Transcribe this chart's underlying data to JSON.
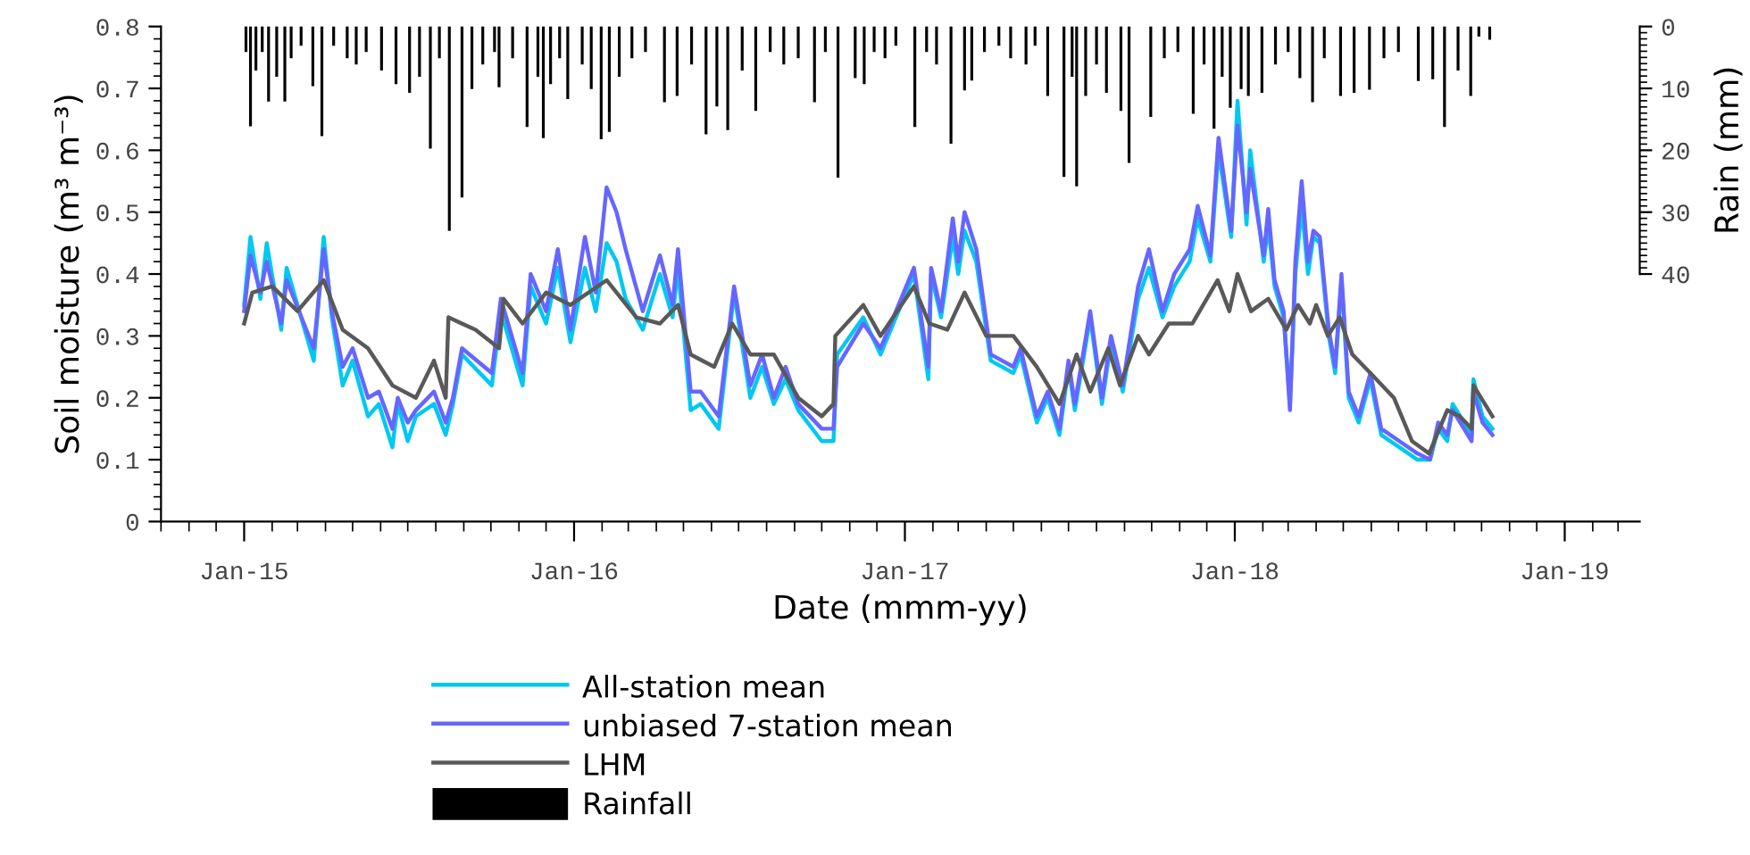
{
  "chart_data": {
    "type": "line",
    "xlabel": "Date (mmm-yy)",
    "ylabel": "Soil moisture (m³ m⁻³)",
    "y2label": "Rain (mm)",
    "xlim": [
      "2014-10-01",
      "2019-03-25"
    ],
    "xticks": [
      {
        "value": "2015-01-01",
        "label": "Jan-15"
      },
      {
        "value": "2016-01-01",
        "label": "Jan-16"
      },
      {
        "value": "2017-01-01",
        "label": "Jan-17"
      },
      {
        "value": "2018-01-01",
        "label": "Jan-18"
      },
      {
        "value": "2019-01-01",
        "label": "Jan-19"
      }
    ],
    "ylim": [
      0,
      0.8
    ],
    "yticks": [
      0,
      0.1,
      0.2,
      0.3,
      0.4,
      0.5,
      0.6,
      0.7,
      0.8
    ],
    "y2lim": [
      80,
      0
    ],
    "y2ticks": [
      0,
      10,
      20,
      30,
      40
    ],
    "grid": false,
    "legend": "bottom",
    "series": [
      {
        "name": "All-station mean",
        "color": "#00c8f0",
        "x": [
          "2015-01-01",
          "2015-01-08",
          "2015-01-19",
          "2015-01-26",
          "2015-02-11",
          "2015-02-17",
          "2015-03-19",
          "2015-03-30",
          "2015-04-08",
          "2015-04-20",
          "2015-05-01",
          "2015-05-18",
          "2015-05-30",
          "2015-06-14",
          "2015-06-20",
          "2015-07-01",
          "2015-07-10",
          "2015-07-30",
          "2015-08-12",
          "2015-08-20",
          "2015-08-30",
          "2015-10-02",
          "2015-10-12",
          "2015-11-05",
          "2015-11-14",
          "2015-12-01",
          "2015-12-14",
          "2015-12-28",
          "2016-01-13",
          "2016-01-25",
          "2016-02-06",
          "2016-02-17",
          "2016-02-27",
          "2016-03-17",
          "2016-04-05",
          "2016-04-19",
          "2016-04-25",
          "2016-05-09",
          "2016-05-20",
          "2016-06-09",
          "2016-06-26",
          "2016-07-14",
          "2016-07-27",
          "2016-08-09",
          "2016-08-22",
          "2016-09-05",
          "2016-10-01",
          "2016-10-14",
          "2016-10-18",
          "2016-11-16",
          "2016-12-05",
          "2017-01-11",
          "2017-01-27",
          "2017-01-30",
          "2017-02-10",
          "2017-02-23",
          "2017-03-01",
          "2017-03-08",
          "2017-03-21",
          "2017-04-06",
          "2017-05-01",
          "2017-05-09",
          "2017-05-27",
          "2017-06-08",
          "2017-06-21",
          "2017-07-01",
          "2017-07-08",
          "2017-07-25",
          "2017-08-07",
          "2017-08-17",
          "2017-08-30",
          "2017-09-16",
          "2017-09-28",
          "2017-10-13",
          "2017-10-26",
          "2017-11-12",
          "2017-11-21",
          "2017-12-05",
          "2017-12-14",
          "2017-12-28",
          "2018-01-04",
          "2018-01-14",
          "2018-01-18",
          "2018-02-02",
          "2018-02-07",
          "2018-02-14",
          "2018-02-24",
          "2018-03-03",
          "2018-03-09",
          "2018-03-16",
          "2018-03-23",
          "2018-03-29",
          "2018-04-05",
          "2018-04-15",
          "2018-04-22",
          "2018-04-29",
          "2018-05-07",
          "2018-05-18",
          "2018-05-31",
          "2018-06-12",
          "2018-07-02",
          "2018-07-22",
          "2018-08-05",
          "2018-08-14",
          "2018-08-24",
          "2018-08-30",
          "2018-09-20",
          "2018-09-22",
          "2018-10-02",
          "2018-10-13"
        ],
        "values": [
          0.35,
          0.46,
          0.36,
          0.45,
          0.31,
          0.41,
          0.26,
          0.46,
          0.33,
          0.22,
          0.26,
          0.17,
          0.19,
          0.12,
          0.19,
          0.13,
          0.17,
          0.19,
          0.14,
          0.19,
          0.27,
          0.22,
          0.34,
          0.22,
          0.38,
          0.32,
          0.41,
          0.29,
          0.41,
          0.34,
          0.45,
          0.42,
          0.36,
          0.31,
          0.4,
          0.33,
          0.41,
          0.18,
          0.19,
          0.15,
          0.37,
          0.2,
          0.25,
          0.19,
          0.23,
          0.18,
          0.13,
          0.13,
          0.27,
          0.33,
          0.27,
          0.4,
          0.23,
          0.4,
          0.33,
          0.46,
          0.4,
          0.47,
          0.42,
          0.26,
          0.24,
          0.27,
          0.16,
          0.2,
          0.14,
          0.25,
          0.18,
          0.33,
          0.19,
          0.29,
          0.21,
          0.36,
          0.41,
          0.33,
          0.38,
          0.42,
          0.49,
          0.42,
          0.6,
          0.46,
          0.68,
          0.48,
          0.6,
          0.42,
          0.48,
          0.38,
          0.33,
          0.19,
          0.4,
          0.51,
          0.4,
          0.46,
          0.45,
          0.3,
          0.24,
          0.39,
          0.2,
          0.16,
          0.23,
          0.14,
          0.12,
          0.1,
          0.1,
          0.15,
          0.13,
          0.19,
          0.14,
          0.23,
          0.17,
          0.15
        ]
      },
      {
        "name": "unbiased 7-station mean",
        "color": "#6666ff",
        "x": [
          "2015-01-01",
          "2015-01-08",
          "2015-01-19",
          "2015-01-26",
          "2015-02-11",
          "2015-02-17",
          "2015-03-19",
          "2015-03-30",
          "2015-04-08",
          "2015-04-20",
          "2015-05-01",
          "2015-05-18",
          "2015-05-30",
          "2015-06-14",
          "2015-06-20",
          "2015-07-01",
          "2015-07-10",
          "2015-07-30",
          "2015-08-12",
          "2015-08-20",
          "2015-08-30",
          "2015-10-02",
          "2015-10-12",
          "2015-11-05",
          "2015-11-14",
          "2015-12-01",
          "2015-12-14",
          "2015-12-28",
          "2016-01-13",
          "2016-01-25",
          "2016-02-06",
          "2016-02-17",
          "2016-02-27",
          "2016-03-17",
          "2016-04-05",
          "2016-04-19",
          "2016-04-25",
          "2016-05-09",
          "2016-05-20",
          "2016-06-09",
          "2016-06-26",
          "2016-07-14",
          "2016-07-27",
          "2016-08-09",
          "2016-08-22",
          "2016-09-05",
          "2016-10-01",
          "2016-10-14",
          "2016-10-18",
          "2016-11-16",
          "2016-12-05",
          "2017-01-11",
          "2017-01-27",
          "2017-01-30",
          "2017-02-10",
          "2017-02-23",
          "2017-03-01",
          "2017-03-08",
          "2017-03-21",
          "2017-04-06",
          "2017-05-01",
          "2017-05-09",
          "2017-05-27",
          "2017-06-08",
          "2017-06-21",
          "2017-07-01",
          "2017-07-08",
          "2017-07-25",
          "2017-08-07",
          "2017-08-17",
          "2017-08-30",
          "2017-09-16",
          "2017-09-28",
          "2017-10-13",
          "2017-10-26",
          "2017-11-12",
          "2017-11-21",
          "2017-12-05",
          "2017-12-14",
          "2017-12-28",
          "2018-01-04",
          "2018-01-14",
          "2018-01-18",
          "2018-02-02",
          "2018-02-07",
          "2018-02-14",
          "2018-02-24",
          "2018-03-03",
          "2018-03-09",
          "2018-03-16",
          "2018-03-23",
          "2018-03-29",
          "2018-04-05",
          "2018-04-15",
          "2018-04-22",
          "2018-04-29",
          "2018-05-07",
          "2018-05-18",
          "2018-05-31",
          "2018-06-12",
          "2018-07-02",
          "2018-07-22",
          "2018-08-05",
          "2018-08-14",
          "2018-08-24",
          "2018-08-30",
          "2018-09-20",
          "2018-09-22",
          "2018-10-02",
          "2018-10-13"
        ],
        "values": [
          0.34,
          0.43,
          0.37,
          0.42,
          0.32,
          0.39,
          0.28,
          0.44,
          0.34,
          0.25,
          0.28,
          0.2,
          0.21,
          0.15,
          0.2,
          0.16,
          0.18,
          0.21,
          0.16,
          0.2,
          0.28,
          0.24,
          0.36,
          0.24,
          0.4,
          0.34,
          0.44,
          0.31,
          0.46,
          0.37,
          0.54,
          0.5,
          0.44,
          0.34,
          0.43,
          0.35,
          0.44,
          0.21,
          0.21,
          0.17,
          0.38,
          0.22,
          0.27,
          0.2,
          0.25,
          0.19,
          0.15,
          0.15,
          0.25,
          0.32,
          0.28,
          0.41,
          0.25,
          0.41,
          0.34,
          0.49,
          0.42,
          0.5,
          0.44,
          0.27,
          0.25,
          0.28,
          0.17,
          0.21,
          0.15,
          0.26,
          0.19,
          0.34,
          0.2,
          0.3,
          0.22,
          0.38,
          0.44,
          0.34,
          0.4,
          0.44,
          0.51,
          0.43,
          0.62,
          0.47,
          0.64,
          0.5,
          0.57,
          0.43,
          0.505,
          0.39,
          0.34,
          0.18,
          0.42,
          0.55,
          0.42,
          0.47,
          0.46,
          0.31,
          0.25,
          0.4,
          0.21,
          0.17,
          0.24,
          0.15,
          0.13,
          0.11,
          0.1,
          0.16,
          0.14,
          0.18,
          0.13,
          0.21,
          0.16,
          0.14
        ]
      },
      {
        "name": "LHM",
        "color": "#595959",
        "x": [
          "2015-01-01",
          "2015-01-10",
          "2015-02-01",
          "2015-03-01",
          "2015-03-30",
          "2015-04-20",
          "2015-05-18",
          "2015-06-14",
          "2015-07-10",
          "2015-07-30",
          "2015-08-12",
          "2015-08-15",
          "2015-09-14",
          "2015-10-10",
          "2015-10-15",
          "2015-11-05",
          "2015-12-01",
          "2015-12-28",
          "2016-02-06",
          "2016-03-10",
          "2016-04-05",
          "2016-04-25",
          "2016-05-09",
          "2016-06-04",
          "2016-06-24",
          "2016-07-14",
          "2016-08-09",
          "2016-09-05",
          "2016-10-01",
          "2016-10-14",
          "2016-10-16",
          "2016-11-16",
          "2016-12-05",
          "2017-01-11",
          "2017-01-28",
          "2017-02-17",
          "2017-03-08",
          "2017-04-01",
          "2017-05-01",
          "2017-05-27",
          "2017-06-21",
          "2017-07-10",
          "2017-07-25",
          "2017-08-14",
          "2017-08-27",
          "2017-09-16",
          "2017-09-28",
          "2017-10-20",
          "2017-11-15",
          "2017-12-13",
          "2017-12-26",
          "2018-01-04",
          "2018-01-19",
          "2018-02-07",
          "2018-02-27",
          "2018-03-12",
          "2018-03-25",
          "2018-04-01",
          "2018-04-14",
          "2018-04-27",
          "2018-05-11",
          "2018-05-31",
          "2018-06-26",
          "2018-07-16",
          "2018-08-04",
          "2018-08-24",
          "2018-09-07",
          "2018-09-20",
          "2018-09-22",
          "2018-10-13"
        ],
        "values": [
          0.32,
          0.37,
          0.38,
          0.34,
          0.39,
          0.31,
          0.28,
          0.22,
          0.2,
          0.26,
          0.2,
          0.33,
          0.31,
          0.28,
          0.36,
          0.32,
          0.37,
          0.35,
          0.39,
          0.33,
          0.32,
          0.35,
          0.27,
          0.25,
          0.32,
          0.27,
          0.27,
          0.2,
          0.17,
          0.19,
          0.3,
          0.35,
          0.3,
          0.38,
          0.32,
          0.31,
          0.37,
          0.3,
          0.3,
          0.25,
          0.19,
          0.27,
          0.21,
          0.28,
          0.22,
          0.3,
          0.27,
          0.32,
          0.32,
          0.39,
          0.34,
          0.4,
          0.34,
          0.36,
          0.31,
          0.35,
          0.32,
          0.35,
          0.3,
          0.33,
          0.27,
          0.24,
          0.2,
          0.13,
          0.11,
          0.18,
          0.17,
          0.15,
          0.22,
          0.17
        ]
      },
      {
        "name": "Rainfall",
        "type": "bar",
        "axis": "y2",
        "color": "#000000",
        "x": [
          "2015-01-03",
          "2015-01-08",
          "2015-01-14",
          "2015-01-21",
          "2015-01-28",
          "2015-02-06",
          "2015-02-15",
          "2015-02-22",
          "2015-03-05",
          "2015-03-18",
          "2015-03-28",
          "2015-04-10",
          "2015-04-25",
          "2015-05-05",
          "2015-05-16",
          "2015-06-02",
          "2015-06-18",
          "2015-07-03",
          "2015-07-14",
          "2015-07-26",
          "2015-08-05",
          "2015-08-16",
          "2015-08-30",
          "2015-09-10",
          "2015-09-22",
          "2015-10-05",
          "2015-10-10",
          "2015-10-25",
          "2015-11-10",
          "2015-11-22",
          "2015-11-28",
          "2015-12-06",
          "2015-12-16",
          "2015-12-25",
          "2016-01-10",
          "2016-01-20",
          "2016-01-31",
          "2016-02-09",
          "2016-02-20",
          "2016-03-05",
          "2016-03-20",
          "2016-04-10",
          "2016-04-24",
          "2016-05-10",
          "2016-05-26",
          "2016-06-07",
          "2016-06-19",
          "2016-07-05",
          "2016-07-20",
          "2016-08-05",
          "2016-08-20",
          "2016-09-05",
          "2016-09-23",
          "2016-10-05",
          "2016-10-19",
          "2016-11-07",
          "2016-11-17",
          "2016-11-28",
          "2016-12-10",
          "2016-12-22",
          "2017-01-12",
          "2017-01-25",
          "2017-02-05",
          "2017-02-21",
          "2017-03-08",
          "2017-03-16",
          "2017-03-30",
          "2017-04-15",
          "2017-04-28",
          "2017-05-15",
          "2017-05-25",
          "2017-06-08",
          "2017-06-26",
          "2017-07-05",
          "2017-07-10",
          "2017-07-20",
          "2017-08-01",
          "2017-08-12",
          "2017-08-28",
          "2017-09-06",
          "2017-09-30",
          "2017-10-15",
          "2017-10-30",
          "2017-11-16",
          "2017-11-28",
          "2017-12-09",
          "2017-12-18",
          "2017-12-27",
          "2018-01-08",
          "2018-01-16",
          "2018-01-31",
          "2018-02-15",
          "2018-03-01",
          "2018-03-14",
          "2018-03-28",
          "2018-04-10",
          "2018-04-28",
          "2018-05-13",
          "2018-05-30",
          "2018-06-15",
          "2018-07-01",
          "2018-07-23",
          "2018-08-08",
          "2018-08-21",
          "2018-09-05",
          "2018-09-19",
          "2018-09-28",
          "2018-10-10"
        ],
        "values": [
          4,
          16,
          7,
          4,
          12,
          8,
          12,
          5,
          3,
          9.5,
          17.6,
          3,
          5,
          6,
          4,
          7,
          9.2,
          10.6,
          8,
          19.6,
          5,
          32.9,
          27.5,
          10,
          6,
          4,
          9.7,
          5,
          16.1,
          8,
          17.9,
          9.2,
          5,
          11.6,
          6,
          10,
          18.1,
          16.9,
          8,
          5,
          4,
          12.1,
          11.1,
          6,
          17.3,
          12.8,
          16.6,
          7,
          13.5,
          4,
          6,
          5,
          12.1,
          4,
          24.3,
          8.2,
          9.2,
          4,
          5,
          3,
          16.1,
          4,
          6,
          18.8,
          10.2,
          8.6,
          4,
          3,
          5,
          6,
          3,
          11.1,
          24.2,
          8,
          25.7,
          11.1,
          6,
          10.6,
          13.5,
          21.9,
          14.5,
          5,
          4,
          14,
          6,
          16.4,
          8,
          13,
          10,
          11.1,
          10.6,
          6,
          4,
          8.2,
          12.1,
          5,
          11.1,
          10.6,
          10.1,
          5,
          4,
          8.7,
          8.4,
          16.1,
          7,
          11.1,
          1.5,
          2
        ]
      }
    ]
  }
}
